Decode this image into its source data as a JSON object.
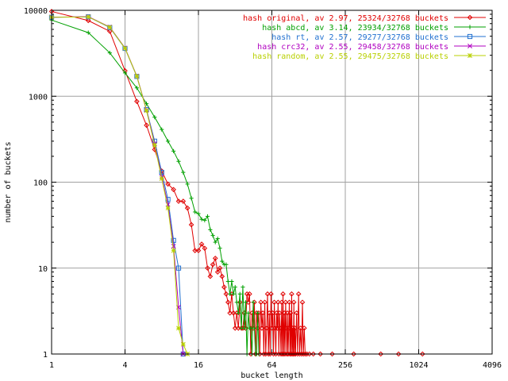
{
  "chart_data": {
    "type": "line",
    "xlabel": "bucket length",
    "ylabel": "number of buckets",
    "x_scale": "log2",
    "y_scale": "log10",
    "xlim": [
      1,
      4096
    ],
    "ylim": [
      1,
      10000
    ],
    "x_ticks": [
      {
        "value": 1,
        "label": "1"
      },
      {
        "value": 4,
        "label": "4"
      },
      {
        "value": 16,
        "label": "16"
      },
      {
        "value": 64,
        "label": "64"
      },
      {
        "value": 256,
        "label": "256"
      },
      {
        "value": 1024,
        "label": "1024"
      },
      {
        "value": 4096,
        "label": "4096"
      }
    ],
    "y_ticks": [
      {
        "value": 1,
        "label": "1"
      },
      {
        "value": 10,
        "label": "10"
      },
      {
        "value": 100,
        "label": "100"
      },
      {
        "value": 1000,
        "label": "1000"
      },
      {
        "value": 10000,
        "label": "10000"
      }
    ],
    "grid": true,
    "legend_position": "top-right",
    "series": [
      {
        "name": "hash original, av 2.97, 25324/32768 buckets",
        "color": "#e00000",
        "marker": "diamond",
        "points": [
          [
            1,
            9700
          ],
          [
            2,
            7600
          ],
          [
            3,
            5700
          ],
          [
            4,
            1980
          ],
          [
            5,
            870
          ],
          [
            6,
            460
          ],
          [
            7,
            240
          ],
          [
            8,
            135
          ],
          [
            9,
            95
          ],
          [
            10,
            82
          ],
          [
            11,
            60
          ],
          [
            12,
            60
          ],
          [
            13,
            50
          ],
          [
            14,
            32
          ],
          [
            15,
            16
          ],
          [
            16,
            16
          ],
          [
            17,
            19
          ],
          [
            18,
            17
          ],
          [
            19,
            10
          ],
          [
            20,
            8
          ],
          [
            21,
            11
          ],
          [
            22,
            13
          ],
          [
            23,
            9
          ],
          [
            24,
            10
          ],
          [
            25,
            8
          ],
          [
            26,
            6
          ],
          [
            27,
            5
          ],
          [
            28,
            4
          ],
          [
            29,
            3
          ],
          [
            30,
            5
          ],
          [
            31,
            3
          ],
          [
            32,
            2
          ],
          [
            33,
            3
          ],
          [
            34,
            2
          ],
          [
            35,
            4
          ],
          [
            36,
            2
          ],
          [
            37,
            2
          ],
          [
            38,
            3
          ],
          [
            39,
            2
          ],
          [
            40,
            5
          ],
          [
            41,
            4
          ],
          [
            42,
            5
          ],
          [
            43,
            1
          ],
          [
            44,
            3
          ],
          [
            45,
            2
          ],
          [
            46,
            4
          ],
          [
            47,
            1
          ],
          [
            48,
            3
          ],
          [
            49,
            2
          ],
          [
            50,
            3
          ],
          [
            51,
            1
          ],
          [
            52,
            4
          ],
          [
            53,
            2
          ],
          [
            54,
            3
          ],
          [
            55,
            1
          ],
          [
            56,
            4
          ],
          [
            57,
            1
          ],
          [
            58,
            2
          ],
          [
            59,
            5
          ],
          [
            60,
            1
          ],
          [
            61,
            3
          ],
          [
            62,
            1
          ],
          [
            63,
            5
          ],
          [
            64,
            2
          ],
          [
            65,
            3
          ],
          [
            66,
            1
          ],
          [
            67,
            4
          ],
          [
            68,
            2
          ],
          [
            69,
            1
          ],
          [
            70,
            3
          ],
          [
            71,
            2
          ],
          [
            72,
            4
          ],
          [
            73,
            1
          ],
          [
            74,
            3
          ],
          [
            75,
            2
          ],
          [
            76,
            1
          ],
          [
            77,
            4
          ],
          [
            78,
            1
          ],
          [
            79,
            5
          ],
          [
            80,
            1
          ],
          [
            81,
            3
          ],
          [
            82,
            1
          ],
          [
            83,
            4
          ],
          [
            84,
            2
          ],
          [
            85,
            1
          ],
          [
            86,
            3
          ],
          [
            87,
            1
          ],
          [
            88,
            2
          ],
          [
            89,
            4
          ],
          [
            90,
            1
          ],
          [
            91,
            3
          ],
          [
            92,
            1
          ],
          [
            93,
            5
          ],
          [
            94,
            1
          ],
          [
            95,
            2
          ],
          [
            96,
            1
          ],
          [
            97,
            4
          ],
          [
            98,
            1
          ],
          [
            99,
            2
          ],
          [
            100,
            1
          ],
          [
            102,
            3
          ],
          [
            104,
            1
          ],
          [
            106,
            5
          ],
          [
            108,
            1
          ],
          [
            110,
            2
          ],
          [
            112,
            1
          ],
          [
            114,
            4
          ],
          [
            116,
            1
          ],
          [
            118,
            2
          ],
          [
            120,
            1
          ],
          [
            124,
            1
          ],
          [
            130,
            1
          ],
          [
            140,
            1
          ],
          [
            160,
            1
          ],
          [
            200,
            1
          ],
          [
            300,
            1
          ],
          [
            500,
            1
          ],
          [
            700,
            1
          ],
          [
            1100,
            1
          ]
        ]
      },
      {
        "name": "hash abcd, av 3.14, 23934/32768 buckets",
        "color": "#00a000",
        "marker": "plus",
        "points": [
          [
            1,
            7700
          ],
          [
            2,
            5500
          ],
          [
            3,
            3200
          ],
          [
            4,
            1870
          ],
          [
            5,
            1250
          ],
          [
            6,
            820
          ],
          [
            7,
            570
          ],
          [
            8,
            410
          ],
          [
            9,
            300
          ],
          [
            10,
            230
          ],
          [
            11,
            175
          ],
          [
            12,
            130
          ],
          [
            13,
            95
          ],
          [
            14,
            65
          ],
          [
            15,
            45
          ],
          [
            16,
            43
          ],
          [
            17,
            37
          ],
          [
            18,
            36
          ],
          [
            19,
            40
          ],
          [
            20,
            28
          ],
          [
            21,
            24
          ],
          [
            22,
            20
          ],
          [
            23,
            22
          ],
          [
            24,
            17
          ],
          [
            25,
            12
          ],
          [
            26,
            11
          ],
          [
            27,
            11
          ],
          [
            28,
            7
          ],
          [
            29,
            5
          ],
          [
            30,
            7
          ],
          [
            31,
            5
          ],
          [
            32,
            6
          ],
          [
            33,
            4
          ],
          [
            34,
            3
          ],
          [
            35,
            5
          ],
          [
            36,
            2
          ],
          [
            37,
            6
          ],
          [
            38,
            2
          ],
          [
            39,
            4
          ],
          [
            40,
            1
          ],
          [
            41,
            3
          ],
          [
            42,
            2
          ],
          [
            43,
            2
          ],
          [
            44,
            1
          ],
          [
            45,
            4
          ],
          [
            46,
            2
          ],
          [
            47,
            1
          ],
          [
            48,
            1
          ],
          [
            49,
            3
          ],
          [
            50,
            1
          ]
        ]
      },
      {
        "name": "hash rt, av 2.57, 29277/32768 buckets",
        "color": "#2070d0",
        "marker": "square",
        "points": [
          [
            1,
            8300
          ],
          [
            2,
            8400
          ],
          [
            3,
            6300
          ],
          [
            4,
            3600
          ],
          [
            5,
            1700
          ],
          [
            6,
            700
          ],
          [
            7,
            300
          ],
          [
            8,
            130
          ],
          [
            9,
            63
          ],
          [
            10,
            21
          ],
          [
            11,
            10
          ],
          [
            12,
            1
          ]
        ]
      },
      {
        "name": "hash crc32, av 2.55, 29458/32768 buckets",
        "color": "#b000c0",
        "marker": "x",
        "points": [
          [
            1,
            8300
          ],
          [
            2,
            8450
          ],
          [
            3,
            6400
          ],
          [
            4,
            3650
          ],
          [
            5,
            1720
          ],
          [
            6,
            690
          ],
          [
            7,
            280
          ],
          [
            8,
            115
          ],
          [
            9,
            55
          ],
          [
            10,
            18
          ],
          [
            11,
            3.5
          ],
          [
            12,
            1
          ]
        ]
      },
      {
        "name": "hash random, av 2.55, 29475/32768 buckets",
        "color": "#b8d000",
        "marker": "star",
        "points": [
          [
            1,
            8300
          ],
          [
            2,
            8400
          ],
          [
            3,
            6350
          ],
          [
            4,
            3620
          ],
          [
            5,
            1710
          ],
          [
            6,
            680
          ],
          [
            7,
            270
          ],
          [
            8,
            110
          ],
          [
            9,
            50
          ],
          [
            10,
            16
          ],
          [
            11,
            2
          ],
          [
            12,
            1.3
          ],
          [
            13,
            1
          ]
        ]
      }
    ]
  }
}
